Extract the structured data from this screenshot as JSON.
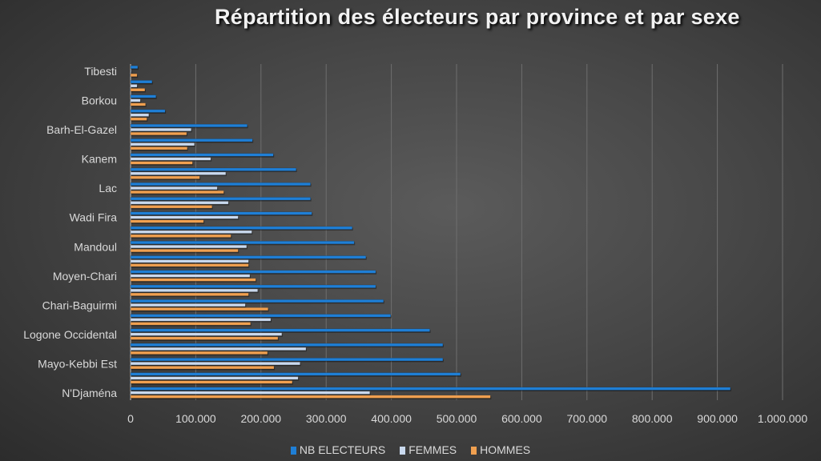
{
  "chart_data": {
    "type": "bar",
    "orientation": "horizontal",
    "title": "Répartition des électeurs par province et par sexe",
    "xlabel": "",
    "ylabel": "",
    "xlim": [
      0,
      1000000
    ],
    "x_ticks": [
      "0",
      "100.000",
      "200.000",
      "300.000",
      "400.000",
      "500.000",
      "600.000",
      "700.000",
      "800.000",
      "900.000",
      "1.000.000"
    ],
    "grid": true,
    "legend_position": "bottom",
    "categories": [
      "N'Djaména",
      "",
      "Mayo-Kebbi Est",
      "",
      "Logone Occidental",
      "",
      "Chari-Baguirmi",
      "",
      "Moyen-Chari",
      "",
      "Mandoul",
      "",
      "Wadi Fira",
      "",
      "Lac",
      "",
      "Kanem",
      "",
      "Barh-El-Gazel",
      "",
      "Borkou",
      "",
      "Tibesti"
    ],
    "series": [
      {
        "name": "NB ELECTEURS",
        "color": "#1f7fd6",
        "values": [
          920000,
          506000,
          479000,
          479000,
          459000,
          399000,
          388000,
          376000,
          376000,
          361000,
          343000,
          340000,
          278000,
          276000,
          276000,
          254000,
          219000,
          187000,
          179000,
          53000,
          39000,
          33000,
          11000
        ]
      },
      {
        "name": "FEMMES",
        "color": "#c9d9ee",
        "values": [
          367000,
          257000,
          260000,
          269000,
          232000,
          215000,
          176000,
          195000,
          183000,
          181000,
          178000,
          186000,
          165000,
          150000,
          133000,
          146000,
          123000,
          98000,
          93000,
          28000,
          15000,
          10000,
          1000
        ]
      },
      {
        "name": "HOMMES",
        "color": "#f0a050",
        "values": [
          552000,
          248000,
          220000,
          210000,
          226000,
          184000,
          211000,
          181000,
          192000,
          181000,
          165000,
          154000,
          112000,
          125000,
          143000,
          106000,
          95000,
          87000,
          86000,
          25000,
          23000,
          22000,
          10000
        ]
      }
    ]
  }
}
